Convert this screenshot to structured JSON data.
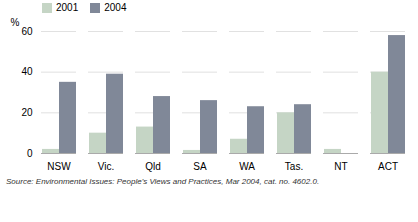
{
  "chart_data": {
    "type": "bar",
    "categories": [
      "NSW",
      "Vic.",
      "Qld",
      "SA",
      "WA",
      "Tas.",
      "NT",
      "ACT"
    ],
    "series": [
      {
        "name": "2001",
        "color": "#c5d5c5",
        "values": [
          2,
          10,
          13,
          1.5,
          7,
          20,
          2,
          40
        ]
      },
      {
        "name": "2004",
        "color": "#808898",
        "values": [
          35,
          39,
          28,
          26,
          23,
          24,
          0,
          58
        ]
      }
    ],
    "ylabel": "%",
    "ylim": [
      0,
      60
    ],
    "yticks": [
      0,
      20,
      40,
      60
    ],
    "grid": true,
    "legend": "upper left",
    "annotations": [
      "Source: Environmental Issues: People's Views and Practices, Mar 2004, cat. no. 4602.0."
    ]
  }
}
